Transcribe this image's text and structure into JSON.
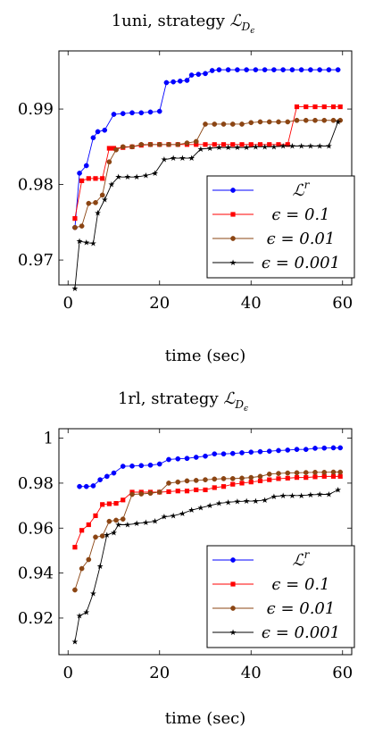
{
  "chart_data": [
    {
      "type": "line",
      "title": "1uni, strategy",
      "title_math": "ℒ",
      "title_sub": "D",
      "title_subsub": "ϵ",
      "xlabel": "time (sec)",
      "ylabel": "",
      "xlim": [
        -2,
        62
      ],
      "ylim": [
        0.9667,
        0.9977
      ],
      "xticks": [
        0,
        20,
        40,
        60
      ],
      "yticks": [
        0.97,
        0.98,
        0.99
      ],
      "ytick_labels": [
        "0.97",
        "0.98",
        "0.99"
      ],
      "legend_position": "bottom-right",
      "grid": false,
      "series": [
        {
          "name": "ℒ",
          "name_sup": "r",
          "color": "#0000ff",
          "marker": "circle",
          "x": [
            1.5,
            2.5,
            4,
            5.5,
            6.5,
            8,
            10,
            12,
            14,
            16,
            18,
            20,
            21.5,
            23,
            24.5,
            26,
            27,
            28.5,
            30,
            31.5,
            33,
            35,
            37,
            39,
            41,
            43,
            45,
            47,
            49,
            51,
            53,
            55,
            57,
            59
          ],
          "values": [
            0.9743,
            0.9815,
            0.9825,
            0.9862,
            0.987,
            0.9872,
            0.9893,
            0.9894,
            0.9895,
            0.9895,
            0.9896,
            0.9897,
            0.9935,
            0.9936,
            0.9937,
            0.9938,
            0.9945,
            0.9946,
            0.9947,
            0.9951,
            0.9952,
            0.9952,
            0.9952,
            0.9952,
            0.9952,
            0.9952,
            0.9952,
            0.9952,
            0.9952,
            0.9952,
            0.9952,
            0.9952,
            0.9952,
            0.9952
          ]
        },
        {
          "name": "ϵ = 0.1",
          "color": "#ff0000",
          "marker": "square",
          "x": [
            1.5,
            3,
            4.5,
            6,
            7.5,
            9,
            10,
            12,
            14,
            16,
            18,
            20,
            22,
            24,
            26,
            28,
            30,
            32,
            34,
            36,
            38,
            40,
            42,
            44,
            46,
            48,
            50,
            52,
            54,
            56,
            58,
            59.5
          ],
          "values": [
            0.9755,
            0.9805,
            0.9808,
            0.9808,
            0.9808,
            0.9848,
            0.9848,
            0.9849,
            0.985,
            0.9852,
            0.9853,
            0.9853,
            0.9853,
            0.9853,
            0.9853,
            0.9853,
            0.9853,
            0.9853,
            0.9853,
            0.9853,
            0.9853,
            0.9853,
            0.9853,
            0.9853,
            0.9853,
            0.9853,
            0.9903,
            0.9903,
            0.9903,
            0.9903,
            0.9903,
            0.9903
          ]
        },
        {
          "name": "ϵ = 0.01",
          "color": "#8b4513",
          "marker": "circle",
          "x": [
            1.5,
            3,
            4.5,
            6,
            7.5,
            9,
            10.5,
            12,
            14,
            16,
            18,
            20,
            22,
            24,
            26,
            28,
            30,
            32,
            34,
            36,
            38,
            40,
            42,
            44,
            46,
            48,
            50,
            52,
            54,
            56,
            58,
            59.5
          ],
          "values": [
            0.9743,
            0.9745,
            0.9775,
            0.9776,
            0.9786,
            0.983,
            0.9846,
            0.985,
            0.985,
            0.9853,
            0.9853,
            0.9853,
            0.9853,
            0.9853,
            0.9855,
            0.9857,
            0.988,
            0.988,
            0.988,
            0.988,
            0.988,
            0.9882,
            0.9883,
            0.9883,
            0.9883,
            0.9883,
            0.9885,
            0.9885,
            0.9885,
            0.9885,
            0.9885,
            0.9885
          ]
        },
        {
          "name": "ϵ = 0.001",
          "color": "#000000",
          "marker": "star",
          "x": [
            1.5,
            2.5,
            4,
            5.5,
            6.5,
            8,
            9.5,
            11,
            13,
            15,
            17,
            19,
            21,
            23,
            25,
            27,
            29,
            31,
            33,
            35,
            37,
            39,
            41,
            43,
            45,
            47,
            49,
            51,
            53,
            55,
            57,
            59
          ],
          "values": [
            0.9662,
            0.9725,
            0.9723,
            0.9722,
            0.9762,
            0.978,
            0.98,
            0.981,
            0.981,
            0.981,
            0.9812,
            0.9815,
            0.9833,
            0.9835,
            0.9835,
            0.9835,
            0.9847,
            0.9848,
            0.9849,
            0.9849,
            0.9849,
            0.9849,
            0.985,
            0.985,
            0.985,
            0.9851,
            0.9851,
            0.9851,
            0.9851,
            0.9851,
            0.9851,
            0.9883
          ]
        }
      ]
    },
    {
      "type": "line",
      "title": "1rl, strategy",
      "title_math": "ℒ",
      "title_sub": "D",
      "title_subsub": "ϵ",
      "xlabel": "time (sec)",
      "ylabel": "",
      "xlim": [
        -2,
        62
      ],
      "ylim": [
        0.9037,
        1.0042
      ],
      "xticks": [
        0,
        20,
        40,
        60
      ],
      "yticks": [
        0.92,
        0.94,
        0.96,
        0.98,
        1.0
      ],
      "ytick_labels": [
        "0.92",
        "0.94",
        "0.96",
        "0.98",
        "1"
      ],
      "legend_position": "bottom-right",
      "grid": false,
      "series": [
        {
          "name": "ℒ",
          "name_sup": "r",
          "color": "#0000ff",
          "marker": "circle",
          "x": [
            2.5,
            4,
            5.5,
            7,
            8.5,
            10,
            12,
            14,
            16,
            18,
            20,
            22,
            24,
            26,
            28,
            30,
            32,
            34,
            36,
            38,
            40,
            42,
            44,
            46,
            48,
            50,
            52,
            54,
            56,
            58,
            59.5
          ],
          "values": [
            0.9785,
            0.9785,
            0.9788,
            0.9815,
            0.983,
            0.9845,
            0.9875,
            0.9876,
            0.9878,
            0.988,
            0.9885,
            0.9905,
            0.9908,
            0.991,
            0.9915,
            0.992,
            0.993,
            0.993,
            0.9932,
            0.9935,
            0.9938,
            0.994,
            0.9942,
            0.9945,
            0.9947,
            0.995,
            0.995,
            0.9955,
            0.9956,
            0.9957,
            0.9957
          ]
        },
        {
          "name": "ϵ = 0.1",
          "color": "#ff0000",
          "marker": "square",
          "x": [
            1.5,
            3,
            4.5,
            6,
            7.5,
            9,
            10.5,
            12,
            14,
            16,
            18,
            20,
            22,
            24,
            26,
            28,
            30,
            32,
            34,
            36,
            38,
            40,
            42,
            44,
            46,
            48,
            50,
            52,
            54,
            56,
            58,
            59.5
          ],
          "values": [
            0.9515,
            0.959,
            0.9615,
            0.9655,
            0.9705,
            0.9708,
            0.971,
            0.9725,
            0.976,
            0.976,
            0.976,
            0.976,
            0.9762,
            0.9765,
            0.9765,
            0.977,
            0.977,
            0.978,
            0.9785,
            0.9795,
            0.98,
            0.9805,
            0.981,
            0.9815,
            0.982,
            0.9822,
            0.9825,
            0.9825,
            0.9828,
            0.983,
            0.983,
            0.983
          ]
        },
        {
          "name": "ϵ = 0.01",
          "color": "#8b4513",
          "marker": "circle",
          "x": [
            1.5,
            3,
            4.5,
            6,
            7.5,
            9,
            10.5,
            12,
            14,
            16,
            18,
            20,
            22,
            24,
            26,
            28,
            30,
            32,
            34,
            36,
            38,
            40,
            42,
            44,
            46,
            48,
            50,
            52,
            54,
            56,
            58,
            59.5
          ],
          "values": [
            0.9325,
            0.942,
            0.946,
            0.956,
            0.9565,
            0.963,
            0.9635,
            0.964,
            0.975,
            0.9752,
            0.9755,
            0.976,
            0.98,
            0.9805,
            0.981,
            0.9812,
            0.9815,
            0.9818,
            0.982,
            0.982,
            0.9822,
            0.9825,
            0.983,
            0.984,
            0.9843,
            0.9845,
            0.9846,
            0.9847,
            0.9848,
            0.9848,
            0.9849,
            0.9849
          ]
        },
        {
          "name": "ϵ = 0.001",
          "color": "#000000",
          "marker": "star",
          "x": [
            1.5,
            2.5,
            4,
            5.5,
            7,
            8.5,
            10,
            11,
            13,
            15,
            17,
            19,
            21,
            23,
            25,
            27,
            29,
            31,
            33,
            35,
            37,
            39,
            41,
            43,
            45,
            47,
            49,
            51,
            53,
            55,
            57,
            59
          ],
          "values": [
            0.9095,
            0.921,
            0.9225,
            0.931,
            0.943,
            0.957,
            0.958,
            0.9615,
            0.9615,
            0.962,
            0.9625,
            0.963,
            0.965,
            0.9655,
            0.9665,
            0.968,
            0.969,
            0.97,
            0.971,
            0.9715,
            0.9718,
            0.972,
            0.972,
            0.9725,
            0.974,
            0.9745,
            0.9745,
            0.9745,
            0.9748,
            0.975,
            0.975,
            0.977
          ]
        }
      ]
    }
  ]
}
